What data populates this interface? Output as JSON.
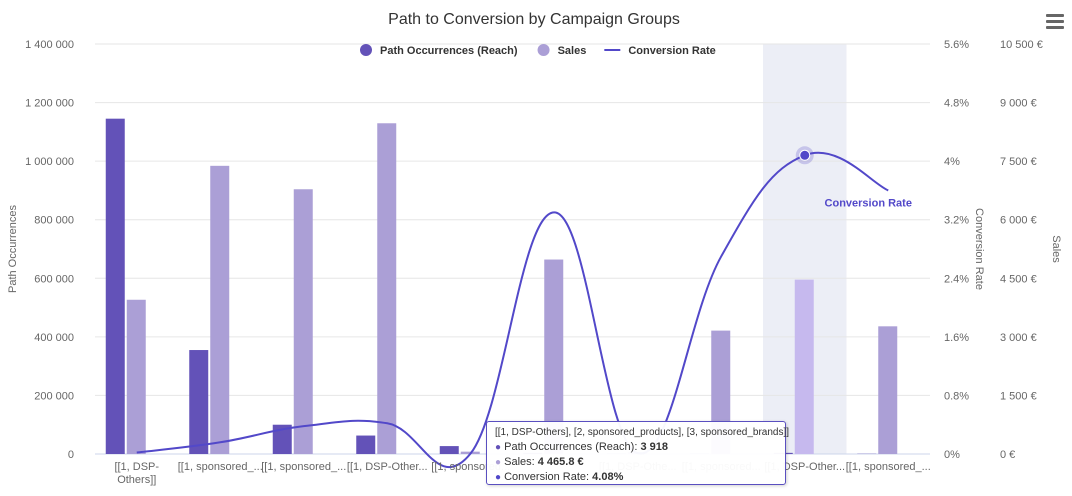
{
  "chart_data": {
    "type": "bar",
    "title": "Path to Conversion by Campaign Groups",
    "categories": [
      "[[1, DSP-Others]]",
      "[[1, sponsored_...",
      "[[1, sponsored_...",
      "[[1, DSP-Other...",
      "[[1, sponsored...",
      "",
      "[[1, DSP-Othe...",
      "[[1, sponsored...",
      "[[1, DSP-Other...",
      "[[1, sponsored_..."
    ],
    "series": [
      {
        "name": "Path Occurrences (Reach)",
        "type": "bar",
        "axis": "left",
        "color": "#6352b8",
        "values": [
          1145000,
          355000,
          100000,
          63000,
          27000,
          3918,
          1500,
          1500,
          3918,
          800
        ]
      },
      {
        "name": "Sales",
        "type": "bar",
        "axis": "right-sales",
        "color": "#ab9fd6",
        "highlight_color": "#c6b9ee",
        "values": [
          3950,
          7380,
          6780,
          8470,
          60,
          4980,
          50,
          3160,
          4465.8,
          3270
        ]
      },
      {
        "name": "Conversion Rate",
        "type": "spline",
        "axis": "right-rate",
        "color": "#5248c9",
        "values": [
          0.02,
          0.16,
          0.38,
          0.42,
          0.01,
          3.3,
          0.01,
          2.7,
          4.08,
          3.6
        ]
      }
    ],
    "axes": {
      "left": {
        "label": "Path Occurrences",
        "ylim": [
          0,
          1400000
        ],
        "ticks": [
          "0",
          "200 000",
          "400 000",
          "600 000",
          "800 000",
          "1 000 000",
          "1 200 000",
          "1 400 000"
        ]
      },
      "right_rate": {
        "label": "Conversion Rate",
        "ylim": [
          0,
          5.6
        ],
        "ticks": [
          "0%",
          "0.8%",
          "1.6%",
          "2.4%",
          "3.2%",
          "4%",
          "4.8%",
          "5.6%"
        ]
      },
      "right_sales": {
        "label": "Sales",
        "ylim": [
          0,
          10500
        ],
        "ticks": [
          "0 €",
          "1 500 €",
          "3 000 €",
          "4 500 €",
          "6 000 €",
          "7 500 €",
          "9 000 €",
          "10 500 €"
        ]
      }
    },
    "legend_position": "top-center",
    "grid": true,
    "hovered_index": 8,
    "data_label": "Conversion Rate"
  },
  "tooltip": {
    "header": "[[1, DSP-Others], [2, sponsored_products], [3, sponsored_brands]]",
    "rows": [
      {
        "label": "Path Occurrences (Reach): ",
        "value": "3 918",
        "color": "#6352b8"
      },
      {
        "label": "Sales: ",
        "value": "4 465.8 €",
        "color": "#ab9fd6"
      },
      {
        "label": "Conversion Rate: ",
        "value": "4.08%",
        "color": "#5248c9"
      }
    ]
  }
}
